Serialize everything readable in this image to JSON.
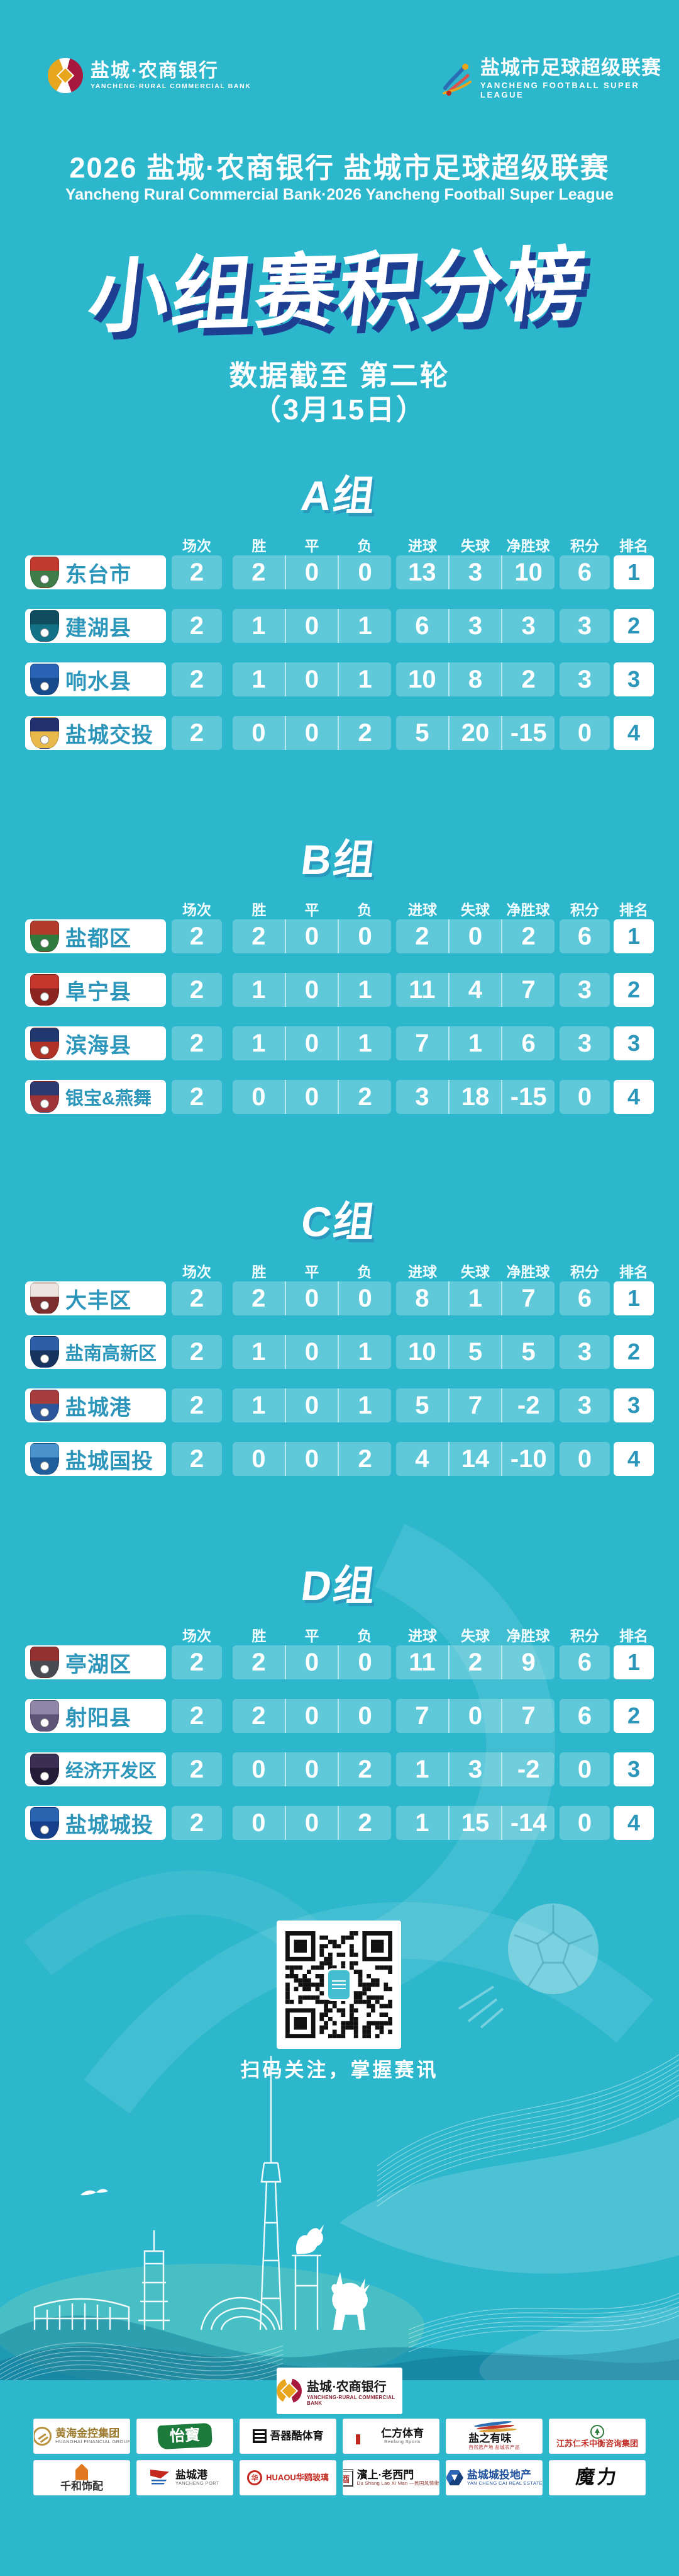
{
  "page": {
    "bg_color": "#2db7cd",
    "accent_navy": "#1e3e91",
    "team_text_color": "#2b96ba"
  },
  "header": {
    "bank_logo": {
      "zh": "盐城·农商银行",
      "en": "YANCHENG·RURAL COMMERCIAL BANK"
    },
    "league_logo": {
      "zh": "盐城市足球超级联赛",
      "en": "YANCHENG FOOTBALL SUPER LEAGUE"
    },
    "title": "2026 盐城·农商银行 盐城市足球超级联赛",
    "subtitle": "Yancheng Rural Commercial Bank·2026 Yancheng Football Super League"
  },
  "hero": {
    "title": "小组赛积分榜",
    "note_line1": "数据截至 第二轮",
    "note_line2": "（3月15日）"
  },
  "table_headers": [
    "场次",
    "胜",
    "平",
    "负",
    "进球",
    "失球",
    "净胜球",
    "积分",
    "排名"
  ],
  "groups": [
    {
      "name": "A组",
      "teams": [
        {
          "name": "东台市",
          "crest": [
            "#c23a2f",
            "#3e7d49"
          ],
          "played": 2,
          "won": 2,
          "drawn": 0,
          "lost": 0,
          "gf": 13,
          "ga": 3,
          "gd": 10,
          "pts": 6,
          "rank": 1
        },
        {
          "name": "建湖县",
          "crest": [
            "#0e4b5c",
            "#137287"
          ],
          "played": 2,
          "won": 1,
          "drawn": 0,
          "lost": 1,
          "gf": 6,
          "ga": 3,
          "gd": 3,
          "pts": 3,
          "rank": 2
        },
        {
          "name": "响水县",
          "crest": [
            "#2b63b4",
            "#174a8c"
          ],
          "played": 2,
          "won": 1,
          "drawn": 0,
          "lost": 1,
          "gf": 10,
          "ga": 8,
          "gd": 2,
          "pts": 3,
          "rank": 3
        },
        {
          "name": "盐城交投",
          "crest": [
            "#23306f",
            "#e8b84b"
          ],
          "played": 2,
          "won": 0,
          "drawn": 0,
          "lost": 2,
          "gf": 5,
          "ga": 20,
          "gd": -15,
          "pts": 0,
          "rank": 4
        }
      ]
    },
    {
      "name": "B组",
      "teams": [
        {
          "name": "盐都区",
          "crest": [
            "#b23b2b",
            "#2f7a3d"
          ],
          "played": 2,
          "won": 2,
          "drawn": 0,
          "lost": 0,
          "gf": 2,
          "ga": 0,
          "gd": 2,
          "pts": 6,
          "rank": 1
        },
        {
          "name": "阜宁县",
          "crest": [
            "#c4372c",
            "#8c2420"
          ],
          "played": 2,
          "won": 1,
          "drawn": 0,
          "lost": 1,
          "gf": 11,
          "ga": 4,
          "gd": 7,
          "pts": 3,
          "rank": 2
        },
        {
          "name": "滨海县",
          "crest": [
            "#20386e",
            "#b03226"
          ],
          "played": 2,
          "won": 1,
          "drawn": 0,
          "lost": 1,
          "gf": 7,
          "ga": 1,
          "gd": 6,
          "pts": 3,
          "rank": 3
        },
        {
          "name": "银宝&燕舞",
          "crest": [
            "#2c3a72",
            "#a03338"
          ],
          "played": 2,
          "won": 0,
          "drawn": 0,
          "lost": 2,
          "gf": 3,
          "ga": 18,
          "gd": -15,
          "pts": 0,
          "rank": 4
        }
      ]
    },
    {
      "name": "C组",
      "teams": [
        {
          "name": "大丰区",
          "crest": [
            "#ece4de",
            "#7c2e2e"
          ],
          "played": 2,
          "won": 2,
          "drawn": 0,
          "lost": 0,
          "gf": 8,
          "ga": 1,
          "gd": 7,
          "pts": 6,
          "rank": 1
        },
        {
          "name": "盐南高新区",
          "crest": [
            "#2d5ea6",
            "#16345f"
          ],
          "played": 2,
          "won": 1,
          "drawn": 0,
          "lost": 1,
          "gf": 10,
          "ga": 5,
          "gd": 5,
          "pts": 3,
          "rank": 2
        },
        {
          "name": "盐城港",
          "crest": [
            "#a63c3c",
            "#2c569c"
          ],
          "played": 2,
          "won": 1,
          "drawn": 0,
          "lost": 1,
          "gf": 5,
          "ga": 7,
          "gd": -2,
          "pts": 3,
          "rank": 3
        },
        {
          "name": "盐城国投",
          "crest": [
            "#4a93cc",
            "#1f5d9c"
          ],
          "played": 2,
          "won": 0,
          "drawn": 0,
          "lost": 2,
          "gf": 4,
          "ga": 14,
          "gd": -10,
          "pts": 0,
          "rank": 4
        }
      ]
    },
    {
      "name": "D组",
      "teams": [
        {
          "name": "亭湖区",
          "crest": [
            "#933131",
            "#4a4a52"
          ],
          "played": 2,
          "won": 2,
          "drawn": 0,
          "lost": 0,
          "gf": 11,
          "ga": 2,
          "gd": 9,
          "pts": 6,
          "rank": 1
        },
        {
          "name": "射阳县",
          "crest": [
            "#8f86a8",
            "#5d5478"
          ],
          "played": 2,
          "won": 2,
          "drawn": 0,
          "lost": 0,
          "gf": 7,
          "ga": 0,
          "gd": 7,
          "pts": 6,
          "rank": 2
        },
        {
          "name": "经济开发区",
          "crest": [
            "#3a2f52",
            "#241c38"
          ],
          "played": 2,
          "won": 0,
          "drawn": 0,
          "lost": 2,
          "gf": 1,
          "ga": 3,
          "gd": -2,
          "pts": 0,
          "rank": 3
        },
        {
          "name": "盐城城投",
          "crest": [
            "#2a63b0",
            "#16408c"
          ],
          "played": 2,
          "won": 0,
          "drawn": 0,
          "lost": 2,
          "gf": 1,
          "ga": 15,
          "gd": -14,
          "pts": 0,
          "rank": 4
        }
      ]
    }
  ],
  "qr": {
    "caption": "扫码关注，掌握赛讯"
  },
  "sponsors": {
    "main": {
      "zh": "盐城·农商银行",
      "en": "YANCHENG·RURAL COMMERCIAL BANK"
    },
    "row1": [
      {
        "id": "huanghai",
        "zh": "黄海金控集团",
        "en": "HUANGHAI FINANCIAL GROUP",
        "tc": "#9c7a2e",
        "glyph": "ring",
        "lay": "row"
      },
      {
        "id": "cestbon",
        "zh": "怡寶",
        "en": "",
        "tc": "#ffffff",
        "glyph": "flag",
        "lay": "solo"
      },
      {
        "id": "wuqiku",
        "zh": "吾器酷体育",
        "en": "",
        "tc": "#111111",
        "glyph": "blocks",
        "lay": "row"
      },
      {
        "id": "renfang",
        "zh": "仁方体育",
        "en": "Renfang Sports",
        "tc": "#111111",
        "glyph": "rmark",
        "lay": "row"
      },
      {
        "id": "yanzhiyouwei",
        "zh": "盐之有味",
        "en": "自然选产地 盐城农产品",
        "tc": "#111111",
        "glyph": "swoosh",
        "lay": "col",
        "ec": "#b03030"
      },
      {
        "id": "renhe",
        "zh": "江苏仁禾中衡咨询集团",
        "en": "",
        "tc": "#c03028",
        "glyph": "tree",
        "lay": "col",
        "zh_small": true
      }
    ],
    "row2": [
      {
        "id": "qianhe",
        "zh": "千和饰配",
        "en": "",
        "tc": "#333333",
        "glyph": "building",
        "lay": "col"
      },
      {
        "id": "ycport",
        "zh": "盐城港",
        "en": "YANCHENG PORT",
        "tc": "#111111",
        "glyph": "portflag",
        "lay": "row"
      },
      {
        "id": "huaou",
        "zh": "HUAOU华鸥玻璃",
        "en": "",
        "tc": "#c4281e",
        "glyph": "redcircle",
        "lay": "row",
        "zh_small": true
      },
      {
        "id": "laoximen",
        "zh": "濱上·老西門",
        "en": "Du Shang Lao Xi Man —民国风情街—",
        "tc": "#111111",
        "glyph": "gate",
        "lay": "row",
        "ec": "#8a2a20"
      },
      {
        "id": "ycchengtou",
        "zh": "盐城城投地产",
        "en": "YAN CHENG CAI REAL ESTATE",
        "tc": "#1d4f9c",
        "glyph": "bluecube",
        "lay": "row",
        "ec": "#1d4f9c"
      },
      {
        "id": "moli",
        "zh": "魔力",
        "en": "",
        "tc": "#0a0a0a",
        "glyph": "none",
        "lay": "solo",
        "big": true
      }
    ]
  },
  "icons": {
    "league_mark": "league-athlete-mark",
    "bank_mark": "bank-circle-emblem",
    "qr": "qr-code",
    "soccer_ball": "soccer-ball-watermark",
    "skyline": "yancheng-skyline-art"
  }
}
